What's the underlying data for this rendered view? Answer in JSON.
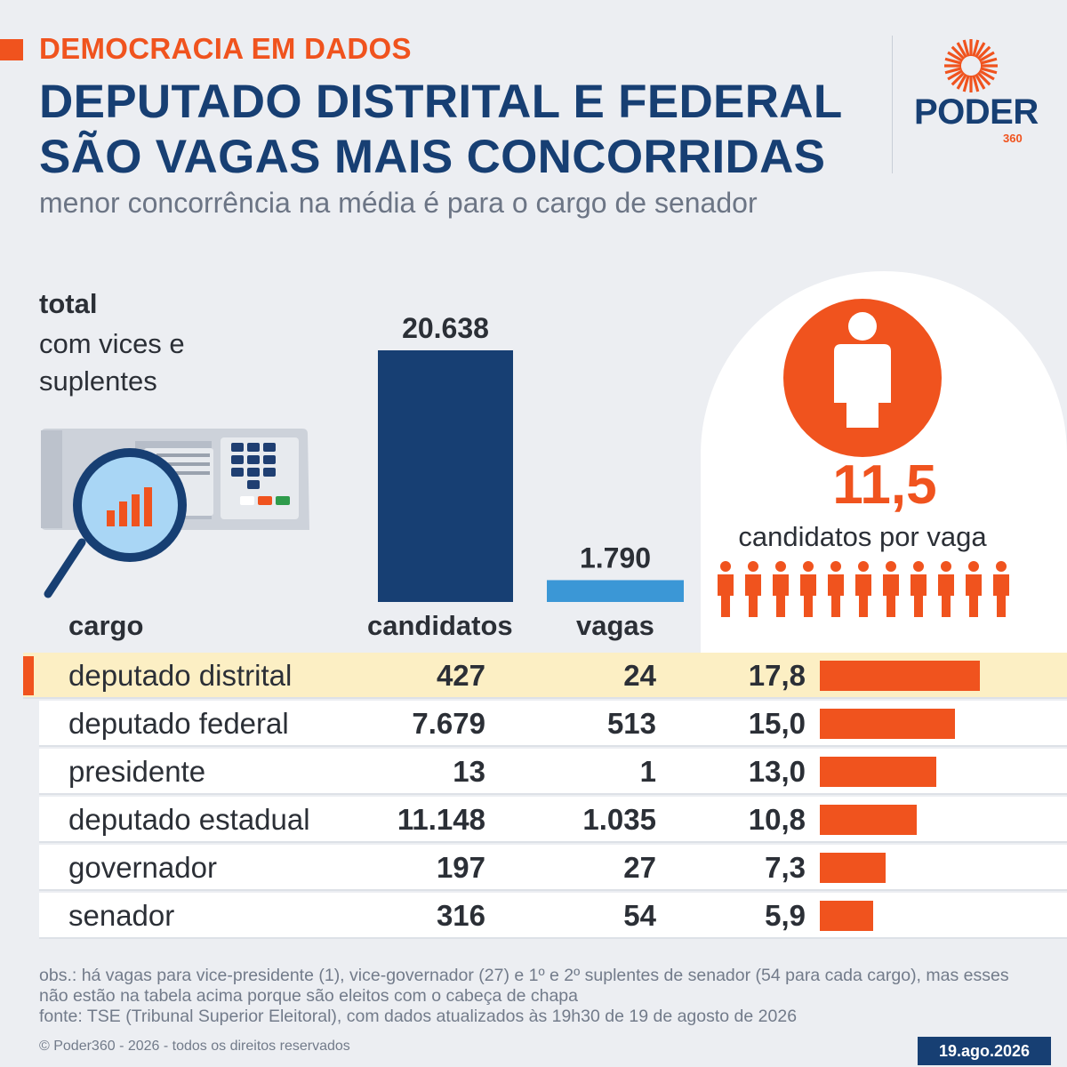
{
  "header": {
    "kicker": "DEMOCRACIA EM DADOS",
    "title": "DEPUTADO DISTRITAL E FEDERAL SÃO VAGAS MAIS CONCORRIDAS",
    "subtitle": "menor concorrência na média é para o cargo de senador"
  },
  "logo": {
    "word": "PODER",
    "number": "360"
  },
  "totals": {
    "label": "total",
    "sublabel": "com vices e suplentes",
    "candidatos": "20.638",
    "vagas": "1.790",
    "ratio": "11,5",
    "ratio_label": "candidatos por vaga"
  },
  "table": {
    "headers": {
      "cargo": "cargo",
      "candidatos": "candidatos",
      "vagas": "vagas"
    },
    "rows": [
      {
        "cargo": "deputado distrital",
        "candidatos": "427",
        "vagas": "24",
        "ratio": "17,8",
        "ratio_value": 17.8,
        "highlight": true
      },
      {
        "cargo": "deputado federal",
        "candidatos": "7.679",
        "vagas": "513",
        "ratio": "15,0",
        "ratio_value": 15.0,
        "highlight": false
      },
      {
        "cargo": "presidente",
        "candidatos": "13",
        "vagas": "1",
        "ratio": "13,0",
        "ratio_value": 13.0,
        "highlight": false
      },
      {
        "cargo": "deputado estadual",
        "candidatos": "11.148",
        "vagas": "1.035",
        "ratio": "10,8",
        "ratio_value": 10.8,
        "highlight": false
      },
      {
        "cargo": "governador",
        "candidatos": "197",
        "vagas": "27",
        "ratio": "7,3",
        "ratio_value": 7.3,
        "highlight": false
      },
      {
        "cargo": "senador",
        "candidatos": "316",
        "vagas": "54",
        "ratio": "5,9",
        "ratio_value": 5.9,
        "highlight": false
      }
    ]
  },
  "notes": {
    "obs": "obs.: há vagas para vice-presidente (1), vice-governador (27) e 1º e 2º suplentes de senador (54 para cada cargo), mas esses não estão na tabela acima porque são eleitos com o cabeça de chapa",
    "fonte": "fonte: TSE (Tribunal Superior Eleitoral), com dados atualizados às 19h30 de 19 de agosto de 2026",
    "copyright": "© Poder360 - 2026 - todos os direitos reservados",
    "date": "19.ago.2026"
  },
  "colors": {
    "navy": "#173f73",
    "orange": "#f0531e",
    "light_blue": "#3b97d6",
    "highlight": "#fcefc4"
  },
  "chart_data": [
    {
      "type": "bar",
      "categories": [
        "candidatos",
        "vagas"
      ],
      "values": [
        20638,
        1790
      ]
    },
    {
      "type": "bar",
      "categories": [
        "deputado distrital",
        "deputado federal",
        "presidente",
        "deputado estadual",
        "governador",
        "senador"
      ],
      "series": [
        {
          "values": [
            427,
            7679,
            13,
            11148,
            197,
            316
          ]
        },
        {
          "values": [
            24,
            513,
            1,
            1035,
            27,
            54
          ]
        },
        {
          "values": [
            17.8,
            15.0,
            13.0,
            10.8,
            7.3,
            5.9
          ]
        }
      ]
    }
  ]
}
